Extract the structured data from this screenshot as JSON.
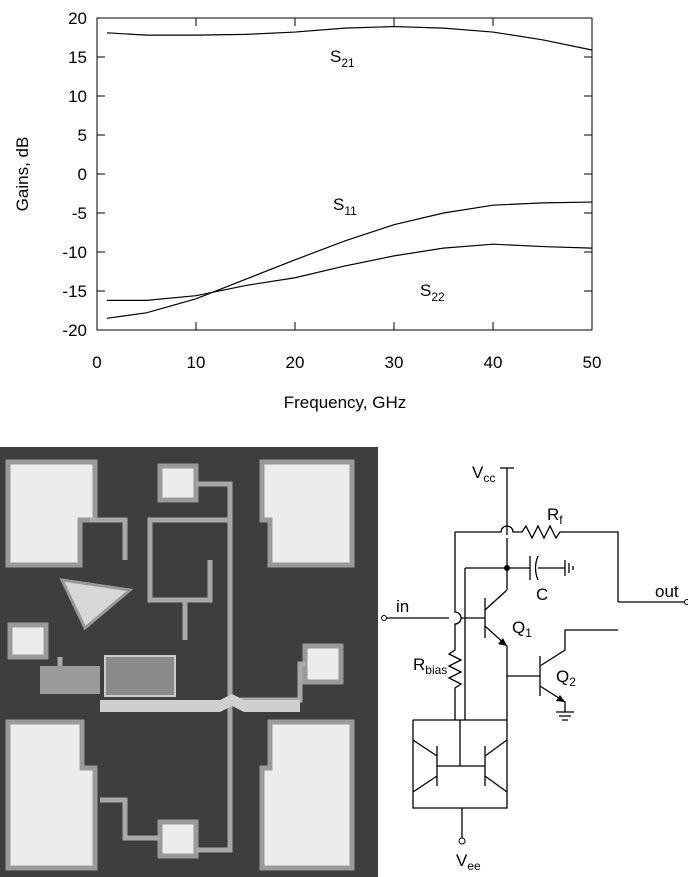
{
  "chart_data": {
    "type": "line",
    "xlabel": "Frequency, GHz",
    "ylabel": "Gains, dB",
    "x": [
      1,
      5,
      10,
      15,
      20,
      25,
      30,
      35,
      40,
      45,
      50
    ],
    "series": [
      {
        "name": "S21",
        "color": "#000000",
        "values": [
          18.1,
          17.8,
          17.8,
          17.9,
          18.2,
          18.7,
          18.9,
          18.7,
          18.2,
          17.2,
          15.9
        ]
      },
      {
        "name": "S11",
        "color": "#000000",
        "values": [
          -18.5,
          -17.8,
          -16,
          -13.5,
          -11,
          -8.6,
          -6.5,
          -5,
          -4,
          -3.7,
          -3.6
        ]
      },
      {
        "name": "S22",
        "color": "#000000",
        "values": [
          -16.2,
          -16.2,
          -15.6,
          -14.3,
          -13.3,
          -11.8,
          -10.5,
          -9.5,
          -9,
          -9.3,
          -9.5
        ]
      }
    ],
    "xlim": [
      0,
      50
    ],
    "xticks": [
      0,
      10,
      20,
      30,
      40,
      50
    ],
    "ylim": [
      -20,
      20
    ],
    "yticks": [
      -20,
      -15,
      -10,
      -5,
      0,
      5,
      10,
      15,
      20
    ],
    "grid": false
  },
  "schematic": {
    "vcc": {
      "main": "V",
      "sub": "cc"
    },
    "rf": {
      "main": "R",
      "sub": "f"
    },
    "c": "C",
    "in": "in",
    "q1": {
      "main": "Q",
      "sub": "1"
    },
    "out": "out",
    "rbias": {
      "main": "R",
      "sub": "bias"
    },
    "q2": {
      "main": "Q",
      "sub": "2"
    },
    "vee": {
      "main": "V",
      "sub": "ee"
    }
  }
}
